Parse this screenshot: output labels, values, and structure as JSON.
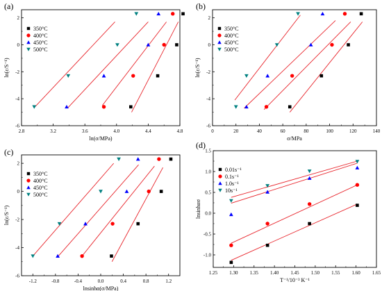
{
  "chart_data": [
    {
      "panel_label": "(a)",
      "type": "scatter",
      "xlabel": "ln(σ/MPa)",
      "ylabel": "ln(ε/S⁻¹)",
      "xlim": [
        2.8,
        4.8
      ],
      "ylim": [
        -6,
        2.6
      ],
      "xticks": [
        "2.8",
        "3.2",
        "3.6",
        "4.0",
        "4.4",
        "4.8"
      ],
      "yticks": [
        "-6",
        "-4",
        "-2",
        "0",
        "2"
      ],
      "legend_position": "upper-left",
      "series": [
        {
          "name": "350°C",
          "marker": "square",
          "color": "#000000",
          "x": [
            4.18,
            4.52,
            4.76,
            4.84
          ],
          "y": [
            -4.6,
            -2.3,
            0.0,
            2.3
          ],
          "fit": [
            [
              4.19,
              -5.0
            ],
            [
              4.78,
              1.7
            ]
          ]
        },
        {
          "name": "400°C",
          "marker": "circle",
          "color": "#ff0000",
          "x": [
            3.84,
            4.21,
            4.6,
            4.71
          ],
          "y": [
            -4.6,
            -2.3,
            0.0,
            2.3
          ],
          "fit": [
            [
              3.82,
              -4.5
            ],
            [
              4.63,
              1.7
            ]
          ]
        },
        {
          "name": "450°C",
          "marker": "triangle-up",
          "color": "#0000ff",
          "x": [
            3.37,
            3.84,
            4.4,
            4.53
          ],
          "y": [
            -4.6,
            -2.3,
            0.0,
            2.3
          ],
          "fit": [
            [
              3.38,
              -4.7
            ],
            [
              4.4,
              1.7
            ]
          ]
        },
        {
          "name": "500°C",
          "marker": "triangle-down",
          "color": "#008080",
          "x": [
            2.96,
            3.39,
            4.01,
            4.25
          ],
          "y": [
            -4.6,
            -2.3,
            0.0,
            2.3
          ],
          "fit": [
            [
              2.97,
              -4.6
            ],
            [
              3.98,
              1.7
            ]
          ]
        }
      ]
    },
    {
      "panel_label": "(b)",
      "type": "scatter",
      "xlabel": "σ/MPa",
      "ylabel": "ln(ε/S⁻¹)",
      "xlim": [
        0,
        140
      ],
      "ylim": [
        -6,
        2.6
      ],
      "xticks": [
        "0",
        "20",
        "40",
        "60",
        "80",
        "100",
        "120",
        "140"
      ],
      "yticks": [
        "-6",
        "-4",
        "-2",
        "0",
        "2"
      ],
      "legend_position": "upper-left",
      "series": [
        {
          "name": "350°C",
          "marker": "square",
          "color": "#000000",
          "x": [
            66,
            93,
            116,
            127
          ],
          "y": [
            -4.6,
            -2.3,
            0.0,
            2.3
          ],
          "fit": [
            [
              66,
              -5.0
            ],
            [
              128,
              1.7
            ]
          ]
        },
        {
          "name": "400°C",
          "marker": "circle",
          "color": "#ff0000",
          "x": [
            46,
            68,
            102,
            113
          ],
          "y": [
            -4.6,
            -2.3,
            0.0,
            2.3
          ],
          "fit": [
            [
              44,
              -4.8
            ],
            [
              118,
              1.7
            ]
          ]
        },
        {
          "name": "450°C",
          "marker": "triangle-up",
          "color": "#0000ff",
          "x": [
            29,
            47,
            84,
            94
          ],
          "y": [
            -4.6,
            -2.3,
            0.0,
            2.3
          ],
          "fit": [
            [
              27,
              -4.7
            ],
            [
              105,
              1.8
            ]
          ]
        },
        {
          "name": "500°C",
          "marker": "triangle-down",
          "color": "#008080",
          "x": [
            20,
            29,
            55,
            73
          ],
          "y": [
            -4.6,
            -2.3,
            0.0,
            2.3
          ],
          "fit": [
            [
              19,
              -4.1
            ],
            [
              75,
              2.2
            ]
          ]
        }
      ]
    },
    {
      "panel_label": "(c)",
      "type": "scatter",
      "xlabel": "lnsinhα(σ/MPa)",
      "ylabel": "ln(ε/S⁻¹)",
      "xlim": [
        -1.4,
        1.4
      ],
      "ylim": [
        -6,
        2.6
      ],
      "xticks": [
        "-1.2",
        "-0.8",
        "-0.4",
        "0.0",
        "0.4",
        "0.8",
        "1.2"
      ],
      "yticks": [
        "-6",
        "-4",
        "-2",
        "0",
        "2"
      ],
      "legend_position": "upper-left",
      "series": [
        {
          "name": "350°C",
          "marker": "square",
          "color": "#000000",
          "x": [
            0.19,
            0.66,
            1.07,
            1.24
          ],
          "y": [
            -4.6,
            -2.3,
            0.0,
            2.3
          ],
          "fit": [
            [
              0.2,
              -5.0
            ],
            [
              1.1,
              1.7
            ]
          ]
        },
        {
          "name": "400°C",
          "marker": "circle",
          "color": "#ff0000",
          "x": [
            -0.33,
            0.21,
            0.85,
            1.03
          ],
          "y": [
            -4.6,
            -2.3,
            0.0,
            2.3
          ],
          "fit": [
            [
              -0.35,
              -4.7
            ],
            [
              0.95,
              1.8
            ]
          ]
        },
        {
          "name": "450°C",
          "marker": "triangle-up",
          "color": "#0000ff",
          "x": [
            -0.76,
            -0.27,
            0.46,
            0.66
          ],
          "y": [
            -4.6,
            -2.3,
            0.0,
            2.3
          ],
          "fit": [
            [
              -0.77,
              -4.7
            ],
            [
              0.67,
              1.9
            ]
          ]
        },
        {
          "name": "500°C",
          "marker": "triangle-down",
          "color": "#008080",
          "x": [
            -1.2,
            -0.73,
            0.0,
            0.32
          ],
          "y": [
            -4.6,
            -2.3,
            0.0,
            2.3
          ],
          "fit": [
            [
              -1.2,
              -4.6
            ],
            [
              0.23,
              2.0
            ]
          ]
        }
      ]
    },
    {
      "panel_label": "(d)",
      "type": "scatter",
      "xlabel": "T⁻¹/10⁻³ K⁻¹",
      "ylabel": "lnsinhασ",
      "xlim": [
        1.25,
        1.65
      ],
      "ylim": [
        -1.3,
        1.5
      ],
      "xticks": [
        "1.25",
        "1.30",
        "1.35",
        "1.40",
        "1.45",
        "1.50",
        "1.55",
        "1.60",
        "1.65"
      ],
      "yticks": [
        "-1.0",
        "-0.5",
        "0.0",
        "0.5",
        "1.0",
        "1.5"
      ],
      "legend_position": "upper-left",
      "series": [
        {
          "name": "0.01s⁻¹",
          "marker": "square",
          "color": "#000000",
          "x": [
            1.294,
            1.383,
            1.486,
            1.603
          ],
          "y": [
            -1.18,
            -0.77,
            -0.25,
            0.19
          ],
          "fit": [
            [
              1.294,
              -1.13
            ],
            [
              1.603,
              0.22
            ]
          ]
        },
        {
          "name": "0.1s⁻¹",
          "marker": "circle",
          "color": "#ff0000",
          "x": [
            1.294,
            1.383,
            1.486,
            1.603
          ],
          "y": [
            -0.77,
            -0.25,
            0.22,
            0.68
          ],
          "fit": [
            [
              1.294,
              -0.72
            ],
            [
              1.603,
              0.68
            ]
          ]
        },
        {
          "name": "1.0s⁻¹",
          "marker": "triangle-up",
          "color": "#0000ff",
          "x": [
            1.294,
            1.383,
            1.486,
            1.603
          ],
          "y": [
            -0.03,
            0.51,
            0.84,
            1.09
          ],
          "fit": [
            [
              1.294,
              0.24
            ],
            [
              1.603,
              1.2
            ]
          ]
        },
        {
          "name": "10s⁻¹",
          "marker": "triangle-down",
          "color": "#008080",
          "x": [
            1.294,
            1.383,
            1.486,
            1.603
          ],
          "y": [
            0.3,
            0.66,
            1.01,
            1.24
          ],
          "fit": [
            [
              1.294,
              0.38
            ],
            [
              1.603,
              1.25
            ]
          ]
        }
      ]
    }
  ]
}
